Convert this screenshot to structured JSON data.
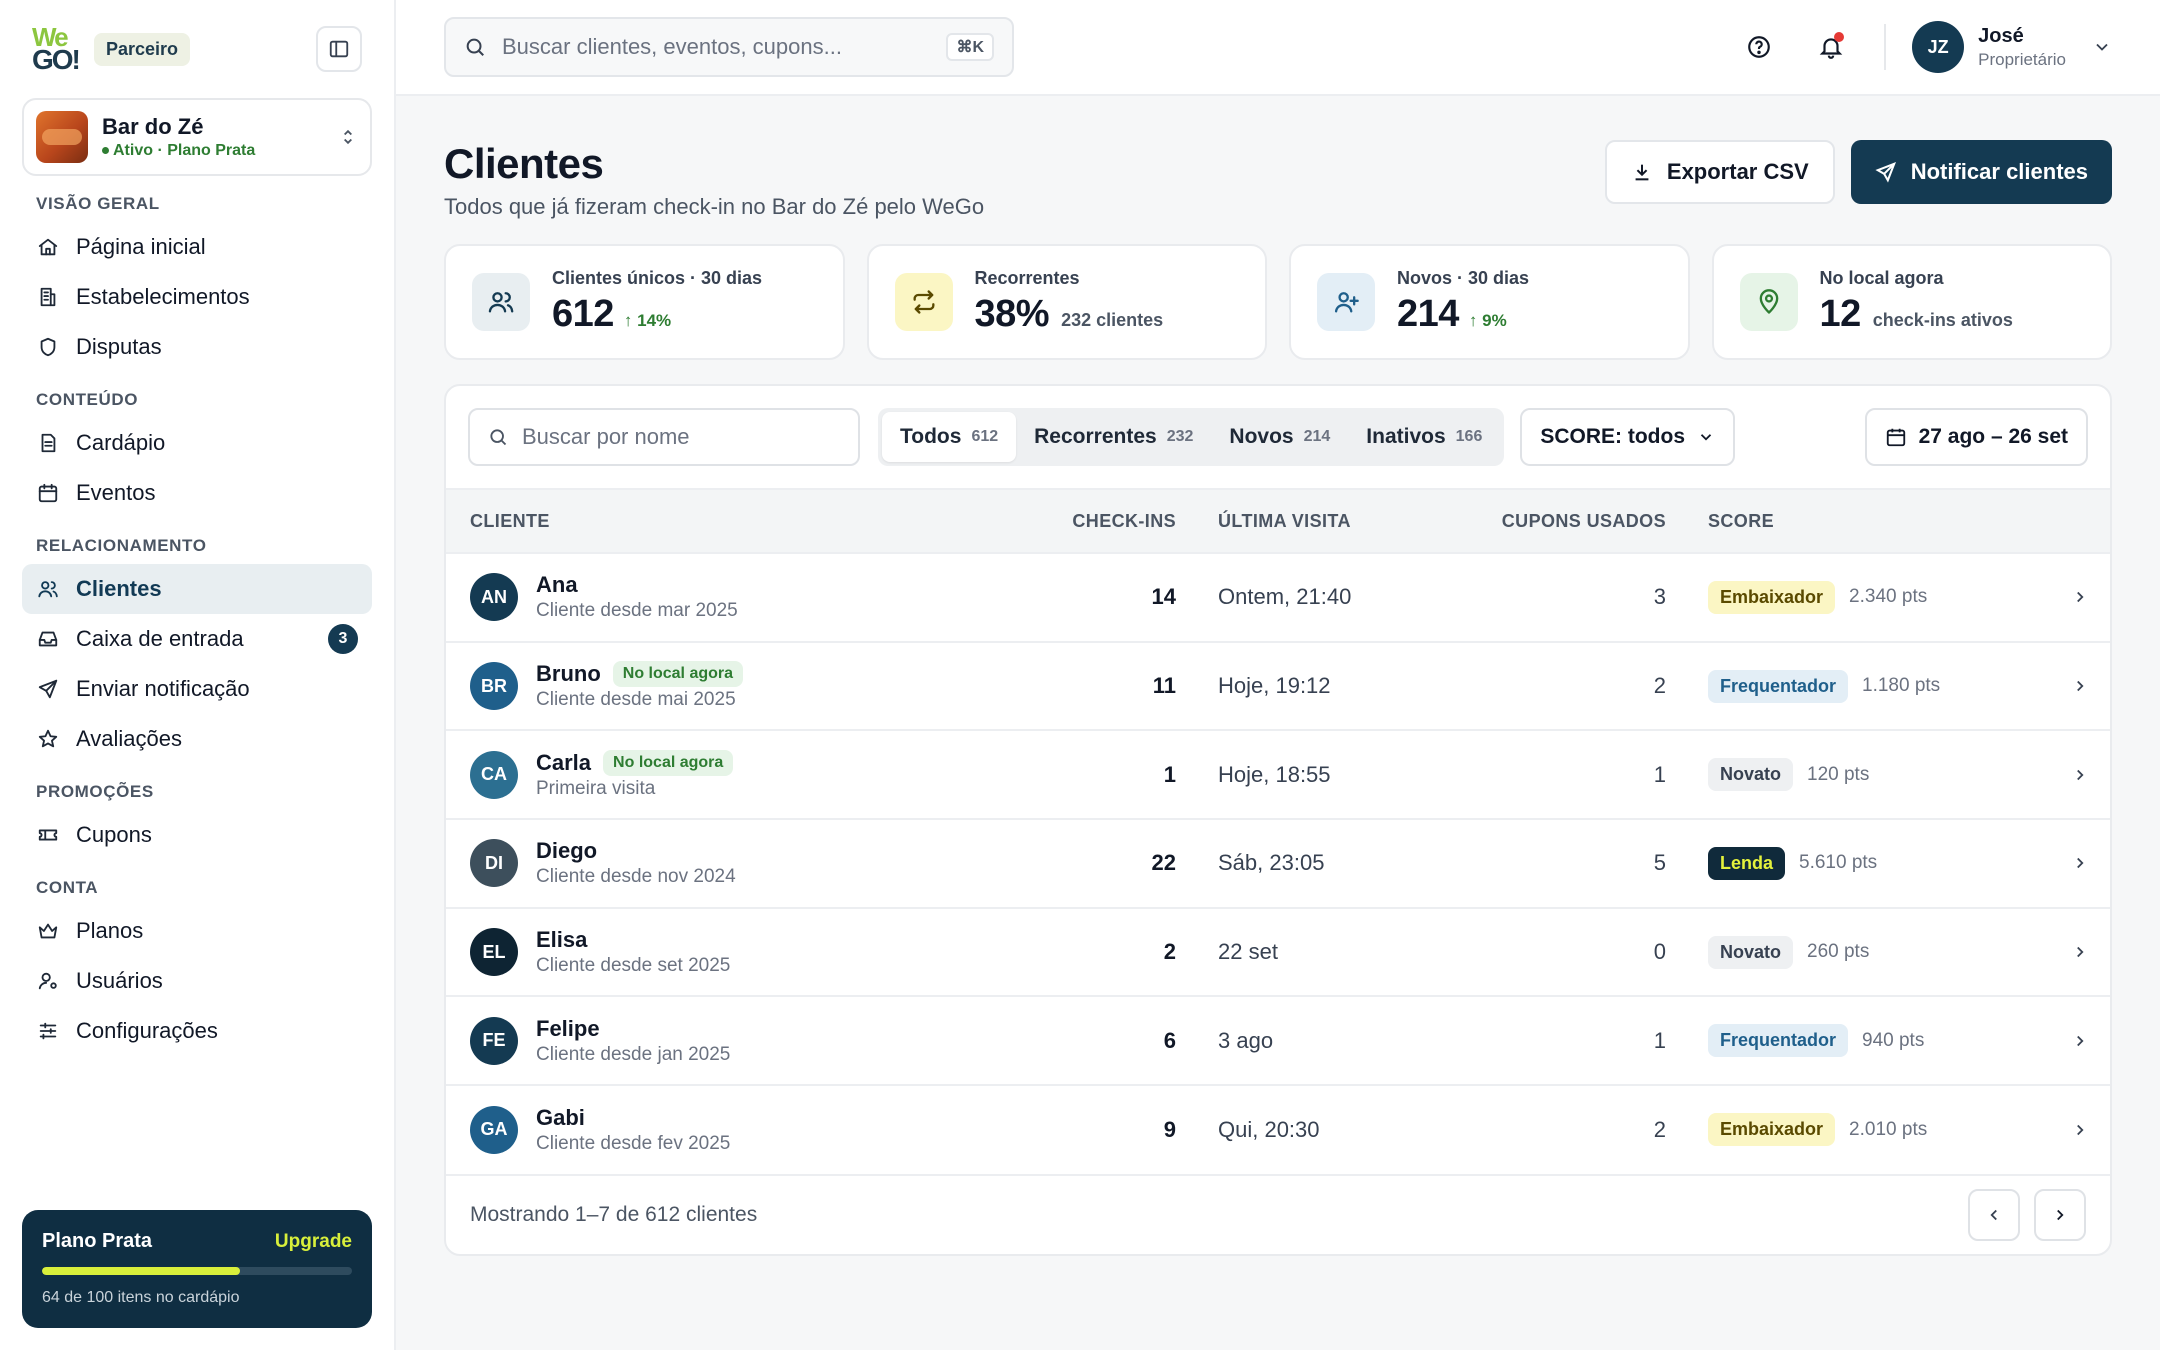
{
  "brand": {
    "logo_top": "We",
    "logo_bottom": "GO!",
    "badge": "Parceiro"
  },
  "venue": {
    "name": "Bar do Zé",
    "status": "Ativo · Plano Prata"
  },
  "nav": {
    "sections": [
      {
        "title": "VISÃO GERAL",
        "items": [
          {
            "label": "Página inicial",
            "icon": "home-icon"
          },
          {
            "label": "Estabelecimentos",
            "icon": "building-icon"
          },
          {
            "label": "Disputas",
            "icon": "shield-icon"
          }
        ]
      },
      {
        "title": "CONTEÚDO",
        "items": [
          {
            "label": "Cardápio",
            "icon": "document-icon"
          },
          {
            "label": "Eventos",
            "icon": "calendar-icon"
          }
        ]
      },
      {
        "title": "RELACIONAMENTO",
        "items": [
          {
            "label": "Clientes",
            "icon": "users-icon",
            "active": true
          },
          {
            "label": "Caixa de entrada",
            "icon": "inbox-icon",
            "count": "3"
          },
          {
            "label": "Enviar notificação",
            "icon": "send-icon"
          },
          {
            "label": "Avaliações",
            "icon": "star-icon"
          }
        ]
      },
      {
        "title": "PROMOÇÕES",
        "items": [
          {
            "label": "Cupons",
            "icon": "ticket-icon"
          }
        ]
      },
      {
        "title": "CONTA",
        "items": [
          {
            "label": "Planos",
            "icon": "crown-icon"
          },
          {
            "label": "Usuários",
            "icon": "user-settings-icon"
          },
          {
            "label": "Configurações",
            "icon": "sliders-icon"
          }
        ]
      }
    ]
  },
  "plan": {
    "title": "Plano Prata",
    "upgrade": "Upgrade",
    "note": "64 de 100 itens no cardápio",
    "progress": 0.64,
    "color": "#d8ef3b"
  },
  "topbar": {
    "search_placeholder": "Buscar clientes, eventos, cupons...",
    "shortcut": "⌘K",
    "user": {
      "initials": "JZ",
      "name": "José",
      "role": "Proprietário"
    }
  },
  "page": {
    "title": "Clientes",
    "subtitle": "Todos que já fizeram check-in no Bar do Zé pelo WeGo",
    "export_label": "Exportar CSV",
    "notify_label": "Notificar clientes"
  },
  "stats": [
    {
      "label": "Clientes únicos · 30 dias",
      "value": "612",
      "delta": "14%",
      "extra": "",
      "icon": "users-icon",
      "bg": "#e8eef1",
      "fg": "#143a52"
    },
    {
      "label": "Recorrentes",
      "value": "38%",
      "delta": "",
      "extra": "232 clientes",
      "icon": "repeat-icon",
      "bg": "#fbf6c4",
      "fg": "#5a4a00"
    },
    {
      "label": "Novos · 30 dias",
      "value": "214",
      "delta": "9%",
      "extra": "",
      "icon": "user-plus-icon",
      "bg": "#e3eef6",
      "fg": "#1f5f8b"
    },
    {
      "label": "No local agora",
      "value": "12",
      "delta": "",
      "extra": "check-ins ativos",
      "icon": "map-pin-icon",
      "bg": "#e6f4e7",
      "fg": "#2e7d32"
    }
  ],
  "filters": {
    "search_placeholder": "Buscar por nome",
    "segments": [
      {
        "label": "Todos",
        "count": "612",
        "active": true
      },
      {
        "label": "Recorrentes",
        "count": "232"
      },
      {
        "label": "Novos",
        "count": "214"
      },
      {
        "label": "Inativos",
        "count": "166"
      }
    ],
    "score_select": "SCORE: todos",
    "date_range": "27 ago – 26 set"
  },
  "table": {
    "headers": {
      "client": "CLIENTE",
      "checkins": "CHECK-INS",
      "last_visit": "ÚLTIMA VISITA",
      "coupons": "CUPONS USADOS",
      "score": "SCORE"
    },
    "rows": [
      {
        "initials": "AN",
        "avatar_color": "#143a52",
        "name": "Ana",
        "since": "Cliente desde mar 2025",
        "live": "",
        "checkins": "14",
        "last": "Ontem, 21:40",
        "coupons": "3",
        "score": "Embaixador",
        "score_bg": "#fbf6c4",
        "score_fg": "#5a4a00",
        "pts": "2.340 pts"
      },
      {
        "initials": "BR",
        "avatar_color": "#1f5f8b",
        "name": "Bruno",
        "since": "Cliente desde mai 2025",
        "live": "No local agora",
        "checkins": "11",
        "last": "Hoje, 19:12",
        "coupons": "2",
        "score": "Frequentador",
        "score_bg": "#e3eef6",
        "score_fg": "#1f5f8b",
        "pts": "1.180 pts"
      },
      {
        "initials": "CA",
        "avatar_color": "#2c6f91",
        "name": "Carla",
        "since": "Primeira visita",
        "live": "No local agora",
        "checkins": "1",
        "last": "Hoje, 18:55",
        "coupons": "1",
        "score": "Novato",
        "score_bg": "#eef0f2",
        "score_fg": "#374151",
        "pts": "120 pts"
      },
      {
        "initials": "DI",
        "avatar_color": "#3d4f5c",
        "name": "Diego",
        "since": "Cliente desde nov 2024",
        "live": "",
        "checkins": "22",
        "last": "Sáb, 23:05",
        "coupons": "5",
        "score": "Lenda",
        "score_bg": "#102a3b",
        "score_fg": "#e4f23c",
        "pts": "5.610 pts"
      },
      {
        "initials": "EL",
        "avatar_color": "#0e2433",
        "name": "Elisa",
        "since": "Cliente desde set 2025",
        "live": "",
        "checkins": "2",
        "last": "22 set",
        "coupons": "0",
        "score": "Novato",
        "score_bg": "#eef0f2",
        "score_fg": "#374151",
        "pts": "260 pts"
      },
      {
        "initials": "FE",
        "avatar_color": "#143a52",
        "name": "Felipe",
        "since": "Cliente desde jan 2025",
        "live": "",
        "checkins": "6",
        "last": "3 ago",
        "coupons": "1",
        "score": "Frequentador",
        "score_bg": "#e3eef6",
        "score_fg": "#1f5f8b",
        "pts": "940 pts"
      },
      {
        "initials": "GA",
        "avatar_color": "#1f5f8b",
        "name": "Gabi",
        "since": "Cliente desde fev 2025",
        "live": "",
        "checkins": "9",
        "last": "Qui, 20:30",
        "coupons": "2",
        "score": "Embaixador",
        "score_bg": "#fbf6c4",
        "score_fg": "#5a4a00",
        "pts": "2.010 pts"
      }
    ],
    "footer": "Mostrando 1–7 de 612 clientes"
  }
}
